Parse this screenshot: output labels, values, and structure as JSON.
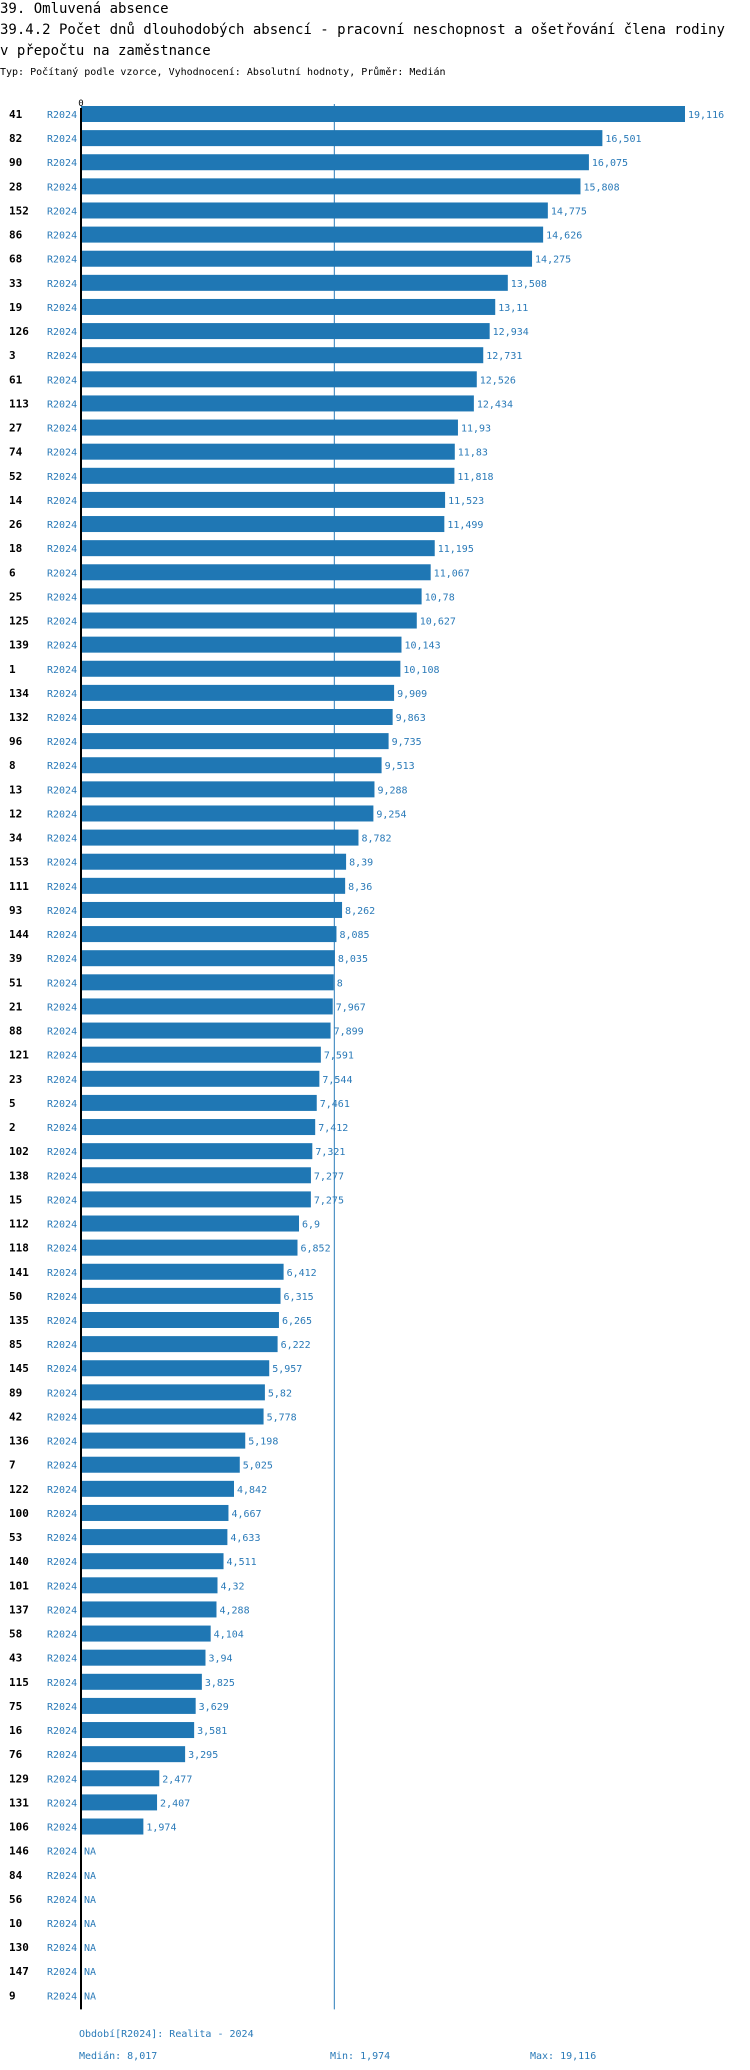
{
  "header": {
    "title": "39. Omluvená absence",
    "subtitle": "39.4.2 Počet dnů dlouhodobých absencí - pracovní neschopnost a ošetřování člena rodiny v přepočtu na zaměstnance",
    "meta": "Typ: Počítaný podle vzorce, Vyhodnocení: Absolutní hodnoty, Průměr: Medián"
  },
  "colors": {
    "bar": "#1f77b4",
    "label": "#2a7ab8",
    "axis": "#000000",
    "median": "#2a7ab8"
  },
  "chart_data": {
    "type": "bar",
    "orientation": "horizontal",
    "period": "R2024",
    "x_tick_label": "0",
    "xlim": [
      0,
      19.116
    ],
    "median": 8.017,
    "categories": [
      "41",
      "82",
      "90",
      "28",
      "152",
      "86",
      "68",
      "33",
      "19",
      "126",
      "3",
      "61",
      "113",
      "27",
      "74",
      "52",
      "14",
      "26",
      "18",
      "6",
      "25",
      "125",
      "139",
      "1",
      "134",
      "132",
      "96",
      "8",
      "13",
      "12",
      "34",
      "153",
      "111",
      "93",
      "144",
      "39",
      "51",
      "21",
      "88",
      "121",
      "23",
      "5",
      "2",
      "102",
      "138",
      "15",
      "112",
      "118",
      "141",
      "50",
      "135",
      "85",
      "145",
      "89",
      "42",
      "136",
      "7",
      "122",
      "100",
      "53",
      "140",
      "101",
      "137",
      "58",
      "43",
      "115",
      "75",
      "16",
      "76",
      "129",
      "131",
      "106",
      "146",
      "84",
      "56",
      "10",
      "130",
      "147",
      "9"
    ],
    "values": [
      19.116,
      16.501,
      16.075,
      15.808,
      14.775,
      14.626,
      14.275,
      13.508,
      13.11,
      12.934,
      12.731,
      12.526,
      12.434,
      11.93,
      11.83,
      11.818,
      11.523,
      11.499,
      11.195,
      11.067,
      10.78,
      10.627,
      10.143,
      10.108,
      9.909,
      9.863,
      9.735,
      9.513,
      9.288,
      9.254,
      8.782,
      8.39,
      8.36,
      8.262,
      8.085,
      8.035,
      8,
      7.967,
      7.899,
      7.591,
      7.544,
      7.461,
      7.412,
      7.321,
      7.277,
      7.275,
      6.9,
      6.852,
      6.412,
      6.315,
      6.265,
      6.222,
      5.957,
      5.82,
      5.778,
      5.198,
      5.025,
      4.842,
      4.667,
      4.633,
      4.511,
      4.32,
      4.288,
      4.104,
      3.94,
      3.825,
      3.629,
      3.581,
      3.295,
      2.477,
      2.407,
      1.974,
      null,
      null,
      null,
      null,
      null,
      null,
      null
    ],
    "value_labels": [
      "19,116",
      "16,501",
      "16,075",
      "15,808",
      "14,775",
      "14,626",
      "14,275",
      "13,508",
      "13,11",
      "12,934",
      "12,731",
      "12,526",
      "12,434",
      "11,93",
      "11,83",
      "11,818",
      "11,523",
      "11,499",
      "11,195",
      "11,067",
      "10,78",
      "10,627",
      "10,143",
      "10,108",
      "9,909",
      "9,863",
      "9,735",
      "9,513",
      "9,288",
      "9,254",
      "8,782",
      "8,39",
      "8,36",
      "8,262",
      "8,085",
      "8,035",
      "8",
      "7,967",
      "7,899",
      "7,591",
      "7,544",
      "7,461",
      "7,412",
      "7,321",
      "7,277",
      "7,275",
      "6,9",
      "6,852",
      "6,412",
      "6,315",
      "6,265",
      "6,222",
      "5,957",
      "5,82",
      "5,778",
      "5,198",
      "5,025",
      "4,842",
      "4,667",
      "4,633",
      "4,511",
      "4,32",
      "4,288",
      "4,104",
      "3,94",
      "3,825",
      "3,629",
      "3,581",
      "3,295",
      "2,477",
      "2,407",
      "1,974",
      "NA",
      "NA",
      "NA",
      "NA",
      "NA",
      "NA",
      "NA"
    ]
  },
  "footer": {
    "period_note": "Období[R2024]: Realita - 2024",
    "median": "Medián: 8,017",
    "min": "Min: 1,974",
    "max": "Max: 19,116"
  }
}
